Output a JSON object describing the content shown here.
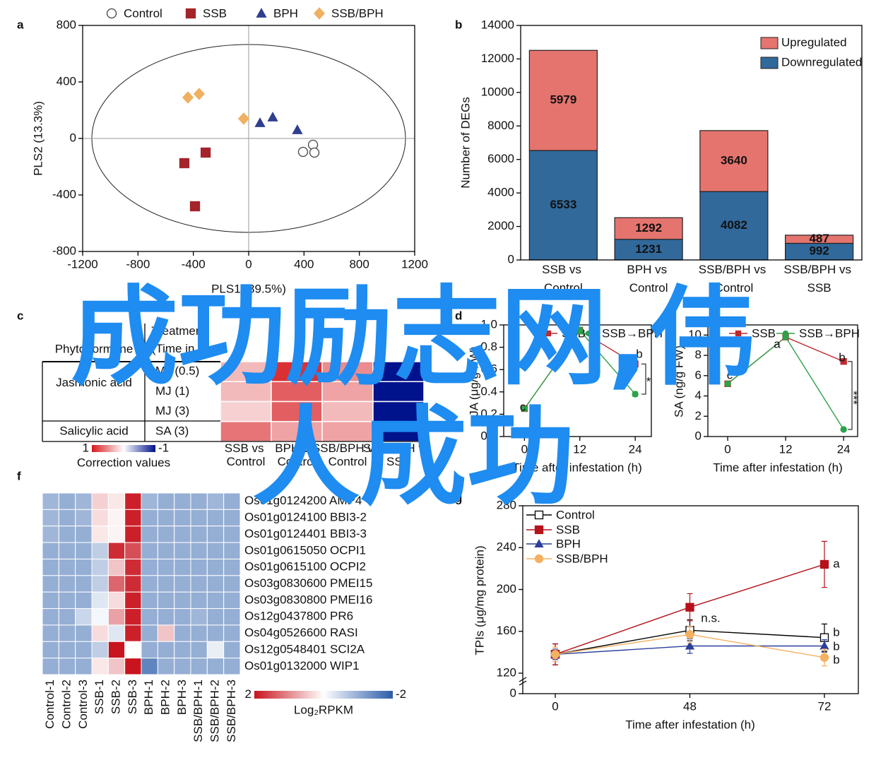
{
  "chart_data": [
    {
      "type": "scatter",
      "panel": "a",
      "xlabel": "PLS1 (39.5%)",
      "ylabel": "PLS2 (13.3%)",
      "xlim": [
        -1200,
        1200
      ],
      "xticks": [
        -1200,
        -800,
        -400,
        0,
        400,
        800,
        1200
      ],
      "ylim": [
        -800,
        800
      ],
      "yticks": [
        -800,
        -400,
        0,
        400,
        800
      ],
      "legend": "top",
      "series": [
        {
          "name": "Control",
          "color": "#444444",
          "marker": "circle-open",
          "x": [
            465,
            393,
            475
          ],
          "values": [
            -45,
            -95,
            -100
          ]
        },
        {
          "name": "SSB",
          "color": "#a3242a",
          "marker": "square",
          "x": [
            -465,
            -311,
            -388
          ],
          "values": [
            -175,
            -100,
            -480
          ]
        },
        {
          "name": "BPH",
          "color": "#2f3f8f",
          "marker": "triangle",
          "x": [
            82,
            174,
            352
          ],
          "values": [
            110,
            150,
            60
          ]
        },
        {
          "name": "SSB/BPH",
          "color": "#f0b060",
          "marker": "diamond",
          "x": [
            -439,
            -358,
            -36
          ],
          "values": [
            290,
            315,
            140
          ]
        }
      ]
    },
    {
      "type": "bar",
      "panel": "b",
      "stacked": true,
      "ylabel": "Number of DEGs",
      "categories": [
        "SSB vs Control",
        "BPH vs Control",
        "SSB/BPH vs Control",
        "SSB/BPH vs SSB"
      ],
      "ylim": [
        0,
        14000
      ],
      "yticks": [
        0,
        2000,
        4000,
        6000,
        8000,
        10000,
        12000,
        14000
      ],
      "legend": "top-right",
      "series": [
        {
          "name": "Downregulated",
          "color": "#31699b",
          "values": [
            6533,
            1231,
            4082,
            992
          ]
        },
        {
          "name": "Upregulated",
          "color": "#e5746f",
          "values": [
            5979,
            1292,
            3640,
            487
          ]
        }
      ]
    },
    {
      "type": "heatmap-table",
      "panel": "c",
      "row_header": "Phytohormone",
      "col_header": "Treatment (Time in h)",
      "row_groups": [
        {
          "name": "Jasmonic acid",
          "rows": [
            "MJ (0.5)",
            "MJ (1)",
            "MJ (3)"
          ]
        },
        {
          "name": "Salicylic acid",
          "rows": [
            "SA (3)"
          ]
        }
      ],
      "columns": [
        "SSB vs Control",
        "BPH vs Control",
        "SSB/BPH vs Control",
        "SSB/BPH vs SSB"
      ],
      "values": [
        [
          0.3,
          0.9,
          0.5,
          -1
        ],
        [
          0.3,
          0.7,
          0.4,
          -1
        ],
        [
          0.2,
          0.7,
          0.3,
          -1
        ],
        [
          0.6,
          0.4,
          0.4,
          -1
        ]
      ],
      "clim": [
        -1,
        1
      ],
      "colors": [
        "#00128c",
        "#ffffff",
        "#d7191c"
      ],
      "colorbar_label": "Correction values"
    },
    {
      "type": "line",
      "panel": "d",
      "ylabel": "JA (μg/g FW)",
      "xlabel": "Time after infestation (h)",
      "x": [
        0,
        12,
        24
      ],
      "xlim": [
        -4.5,
        27.5
      ],
      "xticks": [
        0,
        12,
        24
      ],
      "ylim": [
        0,
        1.0
      ],
      "yticks": [
        {
          "value": 0,
          "label": "0.0"
        },
        0.2,
        0.4,
        0.6,
        0.8,
        {
          "value": 1.0,
          "label": "1.0"
        }
      ],
      "legend": "top",
      "series": [
        {
          "name": "SSB",
          "color": "#c0282d",
          "marker": "square",
          "values": [
            0.25,
            0.95,
            0.65
          ],
          "errors": [
            0.02,
            0.03,
            0.03
          ]
        },
        {
          "name": "SSB→BPH",
          "color": "#2ca24a",
          "marker": "circle",
          "values": [
            0.25,
            0.95,
            0.38
          ],
          "errors": [
            0.02,
            0.03,
            0.02
          ]
        }
      ],
      "annotations": [
        "c",
        "b",
        "*"
      ]
    },
    {
      "type": "line",
      "panel": "e",
      "ylabel": "SA (ng/g FW)",
      "xlabel": "Time after infestation (h)",
      "x": [
        0,
        12,
        24
      ],
      "xlim": [
        -4.1,
        26.9
      ],
      "xticks": [
        0,
        12,
        24
      ],
      "ylim": [
        0,
        11
      ],
      "yticks": [
        0,
        2,
        4,
        6,
        8,
        10
      ],
      "legend": "top",
      "series": [
        {
          "name": "SSB",
          "color": "#c0282d",
          "marker": "square",
          "values": [
            5.2,
            9.8,
            7.4
          ],
          "errors": [
            0.15,
            0.25,
            0.15
          ]
        },
        {
          "name": "SSB→BPH",
          "color": "#2ca24a",
          "marker": "circle",
          "values": [
            5.2,
            9.8,
            0.7
          ],
          "errors": [
            0.15,
            0.25,
            0.1
          ]
        }
      ],
      "annotations": [
        "c",
        "a",
        "b",
        "***"
      ]
    },
    {
      "type": "heatmap",
      "panel": "f",
      "rows": [
        "Os01g0124200 AMP4",
        "Os01g0124100 BBI3-2",
        "Os01g0124401 BBI3-3",
        "Os01g0615050 OCPI1",
        "Os01g0615100 OCPI2",
        "Os03g0830600 PMEI15",
        "Os03g0830800 PMEI16",
        "Os12g0437800 PR6",
        "Os04g0526600 RASI",
        "Os12g0548401 SCI2A",
        "Os01g0132000 WIP1"
      ],
      "columns": [
        "Control-1",
        "Control-2",
        "Control-3",
        "SSB-1",
        "SSB-2",
        "SSB-3",
        "BPH-1",
        "BPH-2",
        "BPH-3",
        "SSB/BPH-1",
        "SSB/BPH-2",
        "SSB/BPH-3"
      ],
      "values": [
        [
          -0.9,
          -1,
          -0.9,
          0.4,
          0.2,
          1.9,
          -0.9,
          -1,
          -1,
          -1,
          -0.9,
          -1
        ],
        [
          -0.9,
          -1,
          -0.9,
          0.3,
          0.1,
          1.9,
          -1,
          -1,
          -1,
          -1,
          -1,
          -1
        ],
        [
          -0.9,
          -1,
          -1,
          0.2,
          0.1,
          1.9,
          -1,
          -1,
          -1,
          -1,
          -1,
          -1
        ],
        [
          -1,
          -1,
          -1,
          -0.6,
          1.8,
          1.5,
          -1,
          -1,
          -1,
          -1,
          -1,
          -1
        ],
        [
          -1,
          -1,
          -1,
          -0.6,
          0.5,
          1.8,
          -1,
          -1,
          -1,
          -1,
          -1,
          -1
        ],
        [
          -1,
          -1,
          -1,
          -0.6,
          1.3,
          1.8,
          -1,
          -1,
          -1,
          -1,
          -1,
          -1
        ],
        [
          -1,
          -1,
          -1,
          -0.3,
          0.3,
          1.9,
          -1,
          -1,
          -1,
          -1,
          -1,
          -1
        ],
        [
          -1,
          -1,
          -0.5,
          -0.1,
          0.8,
          1.9,
          -1,
          -1,
          -1,
          -0.9,
          -1,
          -1
        ],
        [
          -1,
          -1,
          -1,
          0.3,
          -0.3,
          1.9,
          -1,
          0.5,
          -1,
          -1,
          -1,
          -1
        ],
        [
          -1,
          -1,
          -1,
          -0.6,
          2,
          0,
          -1,
          -1,
          -1,
          -1,
          -0.2,
          -1
        ],
        [
          -1,
          -1,
          -1,
          0.2,
          0.5,
          2,
          -1.5,
          -1,
          -1,
          -1,
          -1,
          -1
        ]
      ],
      "clim": [
        -2,
        2
      ],
      "colors": [
        "#2b5ca8",
        "#ffffff",
        "#c8141e"
      ],
      "colorbar_label": "Log₂RPKM"
    },
    {
      "type": "line",
      "panel": "g",
      "ylabel": "TPIs (μg/mg protein)",
      "xlabel": "Time after infestation (h)",
      "categories": [
        "0",
        "48",
        "72"
      ],
      "ylim": [
        0,
        280
      ],
      "yticks": [
        0,
        120,
        160,
        200,
        240,
        280
      ],
      "broken_axis": true,
      "legend": "top-left",
      "series": [
        {
          "name": "Control",
          "color": "#000000",
          "marker": "square-open",
          "values": [
            138,
            161,
            154
          ],
          "errors": [
            10,
            10,
            13
          ]
        },
        {
          "name": "SSB",
          "color": "#b5121b",
          "marker": "square",
          "values": [
            138,
            183,
            224
          ],
          "errors": [
            10,
            13,
            22
          ]
        },
        {
          "name": "BPH",
          "color": "#2b3f9c",
          "marker": "triangle",
          "values": [
            138,
            146,
            146
          ],
          "errors": [
            5,
            7,
            6
          ]
        },
        {
          "name": "SSB/BPH",
          "color": "#f5b061",
          "marker": "circle",
          "values": [
            138,
            157,
            135
          ],
          "errors": [
            7,
            8,
            8
          ]
        }
      ],
      "annotations": [
        "n.s.",
        "a",
        "b",
        "b",
        "b"
      ]
    }
  ],
  "watermark": "成功励志网,伟人成功"
}
